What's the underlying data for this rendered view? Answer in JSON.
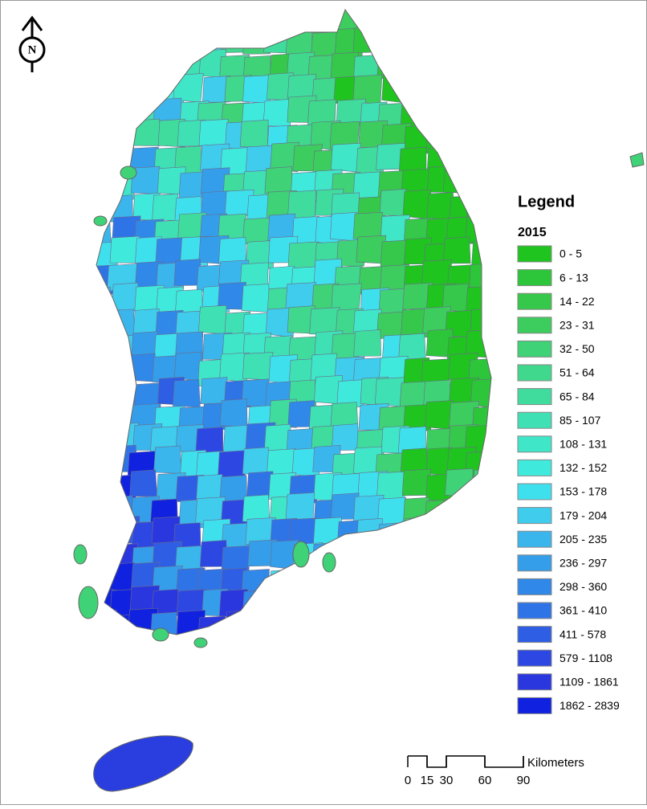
{
  "legend": {
    "title": "Legend",
    "year": "2015",
    "classes": [
      {
        "label": "0 - 5",
        "color": "#1fc41f"
      },
      {
        "label": "6 - 13",
        "color": "#2dc63a"
      },
      {
        "label": "14 - 22",
        "color": "#36c84a"
      },
      {
        "label": "23 - 31",
        "color": "#3dcc5e"
      },
      {
        "label": "32 - 50",
        "color": "#3fd276"
      },
      {
        "label": "51 - 64",
        "color": "#3fd88c"
      },
      {
        "label": "65 - 84",
        "color": "#3fdc9e"
      },
      {
        "label": "85 - 107",
        "color": "#3fe0b4"
      },
      {
        "label": "108 - 131",
        "color": "#3fe6c8"
      },
      {
        "label": "132 - 152",
        "color": "#3feadc"
      },
      {
        "label": "153 - 178",
        "color": "#3fe0ee"
      },
      {
        "label": "179 - 204",
        "color": "#3fcced"
      },
      {
        "label": "205 - 235",
        "color": "#3ab6ec"
      },
      {
        "label": "236 - 297",
        "color": "#359eea"
      },
      {
        "label": "298 - 360",
        "color": "#3088e8"
      },
      {
        "label": "361 - 410",
        "color": "#2f74e6"
      },
      {
        "label": "411 - 578",
        "color": "#2e5ee4"
      },
      {
        "label": "579 - 1108",
        "color": "#2d48e2"
      },
      {
        "label": "1109 - 1861",
        "color": "#2a36de"
      },
      {
        "label": "1862 - 2839",
        "color": "#1022e0"
      }
    ]
  },
  "scale_bar": {
    "ticks": [
      0,
      15,
      30,
      60,
      90
    ],
    "unit": "Kilometers"
  },
  "north_arrow": {
    "label": "N"
  }
}
